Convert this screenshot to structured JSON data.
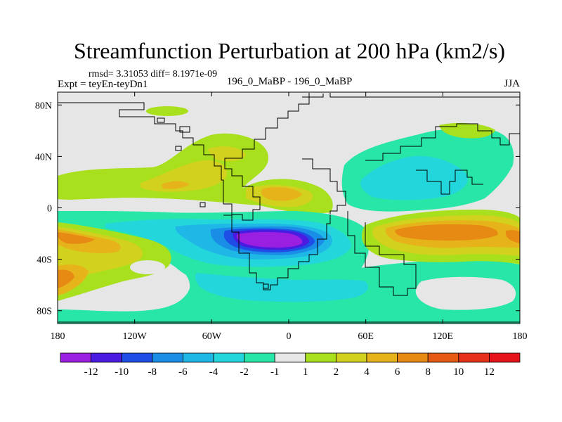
{
  "chart_data": {
    "type": "heatmap",
    "title": "Streamfunction Perturbation at 200 hPa (km2/s)",
    "stats_line": "rmsd= 3.31053 diff= 8.1971e-09",
    "left_label": "Expt = teyEn-teyDn1",
    "center_label": "196_0_MaBP - 196_0_MaBP",
    "right_label": "JJA",
    "x_ticks": [
      {
        "value": -180,
        "label": "180"
      },
      {
        "value": -120,
        "label": "120W"
      },
      {
        "value": -60,
        "label": "60W"
      },
      {
        "value": 0,
        "label": "0"
      },
      {
        "value": 60,
        "label": "60E"
      },
      {
        "value": 120,
        "label": "120E"
      },
      {
        "value": 180,
        "label": "180"
      }
    ],
    "y_ticks": [
      {
        "value": 80,
        "label": "80N"
      },
      {
        "value": 40,
        "label": "40N"
      },
      {
        "value": 0,
        "label": "0"
      },
      {
        "value": -40,
        "label": "40S"
      },
      {
        "value": -80,
        "label": "80S"
      }
    ],
    "xlim": [
      -180,
      180
    ],
    "ylim": [
      -90,
      90
    ],
    "colorbar": {
      "labels": [
        "-12",
        "-10",
        "-8",
        "-6",
        "-4",
        "-2",
        "-1",
        "1",
        "2",
        "4",
        "6",
        "8",
        "10",
        "12"
      ],
      "colors": [
        "#9b1fe0",
        "#4a1be0",
        "#1e4ee6",
        "#1a8ee6",
        "#1fb8e6",
        "#23d6dc",
        "#28e6a8",
        "#e6e6e6",
        "#a8e01e",
        "#d2d21e",
        "#e6b41a",
        "#e68a14",
        "#e65a14",
        "#e6321a",
        "#e6141a"
      ]
    },
    "color_fields": {
      "neutral": "#e6e6e6",
      "positive": [
        "#a8e01e",
        "#d2d21e",
        "#e6b41a",
        "#e68a14"
      ],
      "negative": [
        "#28e6a8",
        "#23d6dc",
        "#1fb8e6",
        "#1a8ee6",
        "#1e4ee6",
        "#4a1be0"
      ]
    }
  }
}
